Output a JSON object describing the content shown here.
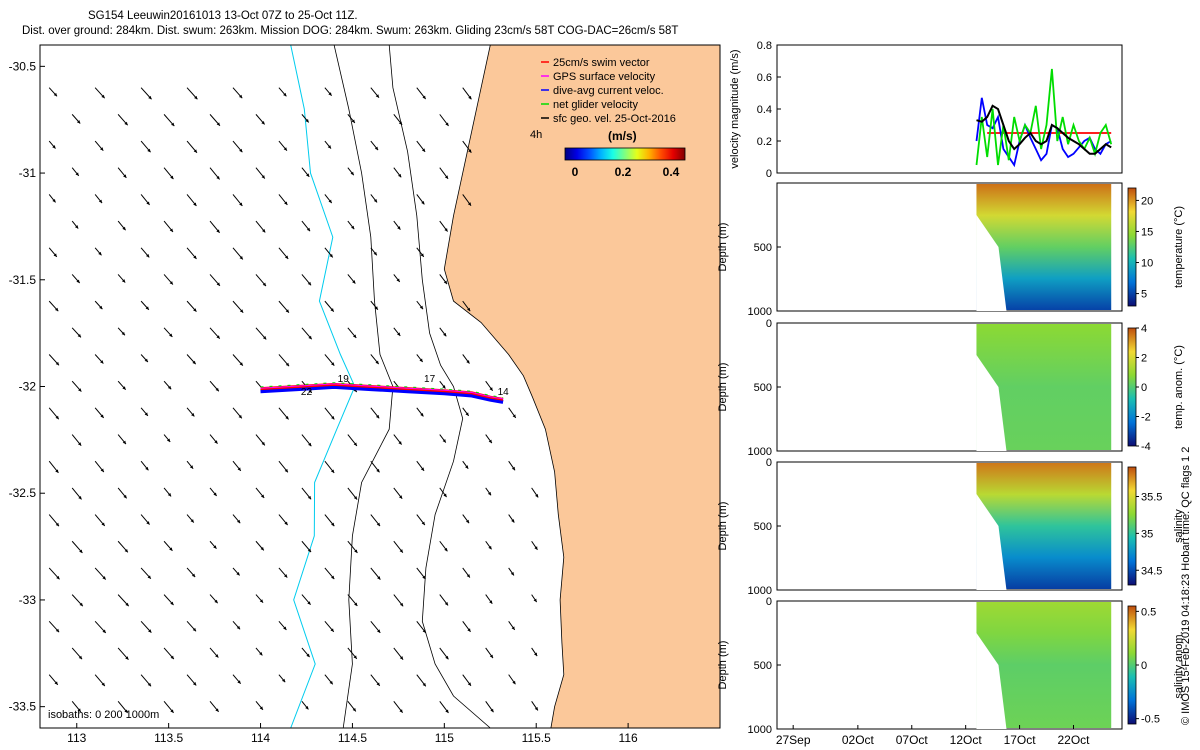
{
  "title_line1": "SG154 Leeuwin20161013 13-Oct 07Z to 25-Oct 11Z.",
  "title_line2": "Dist. over ground: 284km. Dist. swum: 263km. Mission DOG: 284km. Swum: 263km. Gliding 23cm/s 58T COG-DAC=26cm/s 58T",
  "credit": "© IMOS 15-Feb-2019 04:18:23 Hobart time. QC flags 1  2",
  "colors": {
    "land": "#fbc89a",
    "swim": "#ff0000",
    "gps": "#ff00ff",
    "dac": "#0000ff",
    "net": "#00dd00",
    "geo": "#000000",
    "isobath": "#00ccee"
  },
  "chart_data": [
    {
      "type": "map",
      "title": "SG154 Leeuwin20161013 track map",
      "xlim": [
        112.8,
        116.5
      ],
      "ylim": [
        -33.6,
        -30.4
      ],
      "xticks": [
        113,
        113.5,
        114,
        114.5,
        115,
        115.5,
        116
      ],
      "xtick_labels": [
        "113",
        "113.5",
        "114",
        "114.5",
        "115",
        "115.5",
        "116"
      ],
      "yticks": [
        -30.5,
        -31,
        -31.5,
        -32,
        -32.5,
        -33,
        -33.5
      ],
      "ytick_labels": [
        "-30.5",
        "-31",
        "-31.5",
        "-32",
        "-32.5",
        "-33",
        "-33.5"
      ],
      "legend": [
        {
          "label": "25cm/s swim vector",
          "color": "#ff0000"
        },
        {
          "label": "GPS surface velocity",
          "color": "#ff00ff"
        },
        {
          "label": "dive-avg current veloc.",
          "color": "#0000ff"
        },
        {
          "label": "net glider velocity",
          "color": "#00dd00"
        },
        {
          "label": "sfc geo. vel. 25-Oct-2016",
          "color": "#000000"
        }
      ],
      "vector_scale_label": "4h",
      "colorbar": {
        "label": "(m/s)",
        "range": [
          0,
          0.5
        ],
        "ticks": [
          0,
          0.2,
          0.4
        ],
        "tick_labels": [
          "0",
          "0.2",
          "0.4"
        ]
      },
      "isobaths_label": "isobaths: 0   200  1000m",
      "track_day_labels": [
        "19",
        "17",
        "22",
        "14"
      ],
      "track_lon": [
        114.0,
        114.2,
        114.4,
        114.6,
        114.8,
        115.0,
        115.15,
        115.25,
        115.32
      ],
      "track_lat": [
        -32.01,
        -32.0,
        -31.99,
        -32.0,
        -32.01,
        -32.02,
        -32.03,
        -32.05,
        -32.06
      ],
      "coast": [
        [
          116.5,
          -30.4
        ],
        [
          115.25,
          -30.4
        ],
        [
          115.2,
          -30.6
        ],
        [
          115.15,
          -30.8
        ],
        [
          115.1,
          -31.0
        ],
        [
          115.05,
          -31.2
        ],
        [
          115.0,
          -31.45
        ],
        [
          115.05,
          -31.6
        ],
        [
          115.2,
          -31.7
        ],
        [
          115.35,
          -31.85
        ],
        [
          115.43,
          -31.95
        ],
        [
          115.48,
          -32.05
        ],
        [
          115.55,
          -32.2
        ],
        [
          115.6,
          -32.4
        ],
        [
          115.62,
          -32.6
        ],
        [
          115.65,
          -32.8
        ],
        [
          115.63,
          -33.0
        ],
        [
          115.64,
          -33.2
        ],
        [
          115.65,
          -33.35
        ],
        [
          115.6,
          -33.5
        ],
        [
          115.58,
          -33.6
        ],
        [
          116.5,
          -33.6
        ]
      ],
      "isobath_200": [
        [
          114.7,
          -30.4
        ],
        [
          114.72,
          -30.6
        ],
        [
          114.8,
          -30.9
        ],
        [
          114.85,
          -31.2
        ],
        [
          114.88,
          -31.5
        ],
        [
          114.92,
          -31.75
        ],
        [
          114.98,
          -31.9
        ],
        [
          115.05,
          -32.0
        ],
        [
          115.1,
          -32.15
        ],
        [
          115.05,
          -32.35
        ],
        [
          114.95,
          -32.6
        ],
        [
          114.9,
          -32.85
        ],
        [
          114.88,
          -33.1
        ],
        [
          114.95,
          -33.3
        ],
        [
          115.05,
          -33.45
        ],
        [
          115.25,
          -33.6
        ]
      ],
      "isobath_1000": [
        [
          114.4,
          -30.4
        ],
        [
          114.48,
          -30.7
        ],
        [
          114.55,
          -31.0
        ],
        [
          114.6,
          -31.3
        ],
        [
          114.62,
          -31.6
        ],
        [
          114.65,
          -31.85
        ],
        [
          114.72,
          -32.0
        ],
        [
          114.7,
          -32.2
        ],
        [
          114.55,
          -32.45
        ],
        [
          114.5,
          -32.7
        ],
        [
          114.48,
          -33.0
        ],
        [
          114.5,
          -33.3
        ],
        [
          114.45,
          -33.6
        ]
      ]
    },
    {
      "type": "line",
      "ylabel": "velocity magnitude (m/s)",
      "ylim": [
        0,
        0.8
      ],
      "yticks": [
        0,
        0.2,
        0.4,
        0.6,
        0.8
      ],
      "ytick_labels": [
        "0",
        "0.2",
        "0.4",
        "0.6",
        "0.8"
      ],
      "x": [
        13.0,
        13.5,
        14.0,
        14.5,
        15.0,
        15.5,
        16.0,
        16.5,
        17.0,
        17.5,
        18.0,
        18.5,
        19.0,
        19.5,
        20.0,
        20.5,
        21.0,
        21.5,
        22.0,
        22.5,
        23.0,
        23.5,
        24.0,
        24.5,
        25.0,
        25.5
      ],
      "series": [
        {
          "name": "25cm/s swim vector",
          "color": "#ff0000",
          "values": [
            null,
            null,
            0.25,
            0.25,
            0.25,
            0.25,
            0.25,
            0.25,
            0.25,
            0.25,
            0.25,
            0.25,
            0.25,
            0.25,
            0.25,
            0.25,
            0.25,
            0.25,
            0.25,
            0.25,
            0.25,
            0.25,
            0.25,
            0.25,
            0.25,
            0.25
          ]
        },
        {
          "name": "dive-avg current veloc.",
          "color": "#0000ff",
          "values": [
            0.2,
            0.47,
            0.3,
            0.28,
            0.35,
            0.15,
            0.1,
            0.05,
            0.2,
            0.3,
            0.22,
            0.15,
            0.08,
            0.12,
            0.3,
            0.28,
            0.15,
            0.1,
            0.12,
            0.16,
            0.2,
            0.22,
            0.15,
            0.12,
            0.18,
            0.2
          ]
        },
        {
          "name": "net glider velocity",
          "color": "#00dd00",
          "values": [
            0.05,
            0.35,
            0.1,
            0.4,
            0.05,
            0.3,
            0.08,
            0.35,
            0.2,
            0.3,
            0.25,
            0.42,
            0.15,
            0.3,
            0.65,
            0.2,
            0.35,
            0.18,
            0.3,
            0.2,
            0.15,
            0.22,
            0.12,
            0.25,
            0.3,
            0.18
          ]
        },
        {
          "name": "sfc geo. vel.",
          "color": "#000000",
          "values": [
            0.33,
            0.32,
            0.35,
            0.42,
            0.4,
            0.3,
            0.2,
            0.15,
            0.18,
            0.22,
            0.25,
            0.2,
            0.18,
            0.2,
            0.3,
            0.28,
            0.25,
            0.22,
            0.2,
            0.18,
            0.15,
            0.12,
            0.12,
            0.15,
            0.18,
            0.16
          ]
        }
      ]
    },
    {
      "type": "heatmap",
      "ylabel": "Depth (m)",
      "cbar_label": "temperature (°C)",
      "clim": [
        3,
        22
      ],
      "cbar_ticks": [
        5,
        10,
        15,
        20
      ],
      "cbar_tick_labels": [
        "5",
        "10",
        "15",
        "20"
      ],
      "yticks": [
        0,
        500,
        1000
      ],
      "ytick_labels": [
        "",
        "500",
        "1000"
      ],
      "surface": 21,
      "mid": 13,
      "deep": 5
    },
    {
      "type": "heatmap",
      "ylabel": "Depth (m)",
      "cbar_label": "temp. anom. (°C)",
      "clim": [
        -4,
        4
      ],
      "cbar_ticks": [
        -4,
        -2,
        0,
        2,
        4
      ],
      "cbar_tick_labels": [
        "-4",
        "-2",
        "0",
        "2",
        "4"
      ],
      "yticks": [
        0,
        500,
        1000
      ],
      "ytick_labels": [
        "0",
        "500",
        "1000"
      ],
      "surface": 0.8,
      "mid": 0.2,
      "deep": 0.3
    },
    {
      "type": "heatmap",
      "ylabel": "Depth (m)",
      "cbar_label": "salinity",
      "clim": [
        34.3,
        35.9
      ],
      "cbar_ticks": [
        34.5,
        35,
        35.5
      ],
      "cbar_tick_labels": [
        "34.5",
        "35",
        "35.5"
      ],
      "yticks": [
        0,
        500,
        1000
      ],
      "ytick_labels": [
        "0",
        "500",
        "1000"
      ],
      "surface": 35.8,
      "mid": 35.0,
      "deep": 34.45
    },
    {
      "type": "heatmap",
      "ylabel": "Depth (m)",
      "cbar_label": "salinity anom.",
      "clim": [
        -0.55,
        0.55
      ],
      "cbar_ticks": [
        -0.5,
        0,
        0.5
      ],
      "cbar_tick_labels": [
        "-0.5",
        "0",
        "0.5"
      ],
      "yticks": [
        0,
        500,
        1000
      ],
      "ytick_labels": [
        "0",
        "500",
        "1000"
      ],
      "surface": 0.15,
      "mid": 0.02,
      "deep": 0.05
    }
  ],
  "time_axis": {
    "ticks": [
      -4,
      2,
      7,
      12,
      17,
      22
    ],
    "tick_labels": [
      "27Sep",
      "02Oct",
      "07Oct",
      "12Oct",
      "17Oct",
      "22Oct"
    ],
    "range": [
      -5.5,
      26.5
    ],
    "data_start": 13.0,
    "data_end": 25.5
  }
}
